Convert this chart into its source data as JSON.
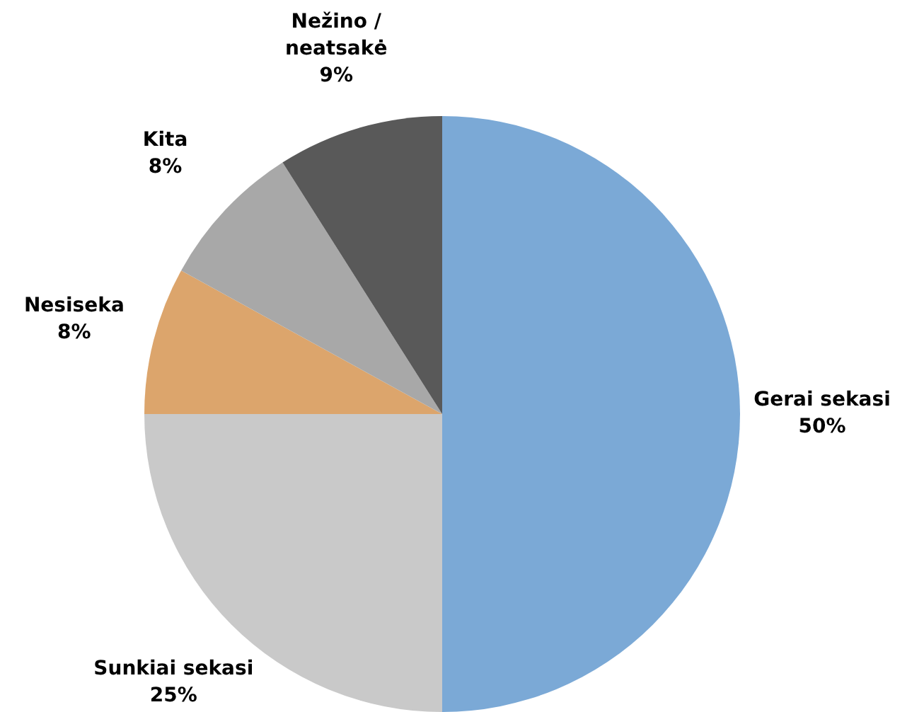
{
  "chart_data": {
    "type": "pie",
    "categories": [
      "Gerai sekasi",
      "Sunkiai sekasi",
      "Nesiseka",
      "Kita",
      "Nežino / neatsakė"
    ],
    "values": [
      50,
      25,
      8,
      8,
      9
    ],
    "colors": [
      "#7ba9d6",
      "#c9c9c9",
      "#dca56c",
      "#a8a8a8",
      "#595959"
    ],
    "value_labels": [
      "50%",
      "25%",
      "8%",
      "8%",
      "9%"
    ],
    "legend": false
  }
}
